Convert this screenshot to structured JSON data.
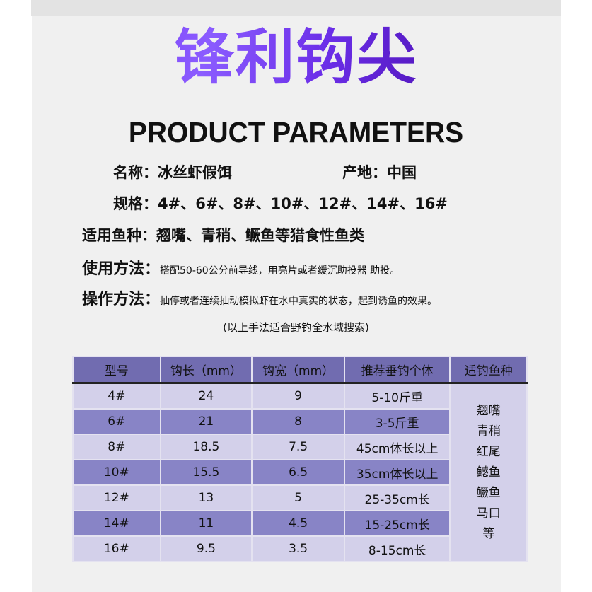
{
  "title": "锋利钩尖",
  "subtitle": "PRODUCT PARAMETERS",
  "info": {
    "name_label": "名称：",
    "name_value": "冰丝虾假饵",
    "origin_label": "产地：",
    "origin_value": "中国",
    "spec_label": "规格：",
    "spec_value": "4#、6#、8#、10#、12#、14#、16#",
    "fish_label": "适用鱼种：",
    "fish_value": "翘嘴、青稍、鳜鱼等猎食性鱼类",
    "usage_label": "使用方法：",
    "usage_value": "搭配50-60公分前导线，用亮片或者缓沉助投器 助投。",
    "operation_label": "操作方法：",
    "operation_value": "抽停或者连续抽动模拟虾在水中真实的状态，起到诱鱼的效果。",
    "note": "(以上手法适合野钓全水域搜索)"
  },
  "table": {
    "headers": [
      "型号",
      "钩长（mm）",
      "钩宽（mm）",
      "推荐垂钓个体",
      "适钓鱼种"
    ],
    "rows": [
      [
        "4#",
        "24",
        "9",
        "5-10斤重"
      ],
      [
        "6#",
        "21",
        "8",
        "3-5斤重"
      ],
      [
        "8#",
        "18.5",
        "7.5",
        "45cm体长以上"
      ],
      [
        "10#",
        "15.5",
        "6.5",
        "35cm体长以上"
      ],
      [
        "12#",
        "13",
        "5",
        "25-35cm长"
      ],
      [
        "14#",
        "11",
        "4.5",
        "15-25cm长"
      ],
      [
        "16#",
        "9.5",
        "3.5",
        "8-15cm长"
      ]
    ],
    "fish_species": [
      "翘嘴",
      "青稍",
      "红尾",
      "鳡鱼",
      "鳜鱼",
      "马口",
      "等"
    ]
  },
  "colors": {
    "title_purple": "#6a1ff0",
    "header_bg": "#716cb0",
    "row_light": "#d3d0ea",
    "row_dark": "#8884c6",
    "panel_bg": "#f0f0f0"
  }
}
